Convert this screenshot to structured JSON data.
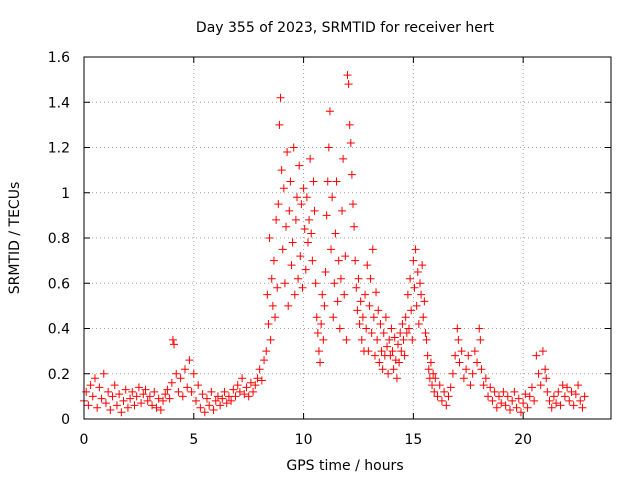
{
  "chart_data": {
    "type": "scatter",
    "title": "Day 355 of 2023, SRMTID for receiver hert",
    "xlabel": "GPS time / hours",
    "ylabel": "SRMTID / TECUs",
    "xlim": [
      0,
      24
    ],
    "ylim": [
      0,
      1.6
    ],
    "xticks": [
      0,
      5,
      10,
      15,
      20
    ],
    "xtick_labels": [
      "0",
      "5",
      "10",
      "15",
      "20"
    ],
    "yticks": [
      0,
      0.2,
      0.4,
      0.6,
      0.8,
      1,
      1.2,
      1.4,
      1.6
    ],
    "ytick_labels": [
      "0",
      "0.2",
      "0.4",
      "0.6",
      "0.8",
      "1",
      "1.2",
      "1.4",
      "1.6"
    ],
    "grid": true,
    "marker": "plus",
    "color": "#ff0000",
    "series": [
      {
        "name": "SRMTID",
        "points": [
          [
            0.0,
            0.08
          ],
          [
            0.1,
            0.12
          ],
          [
            0.2,
            0.06
          ],
          [
            0.3,
            0.15
          ],
          [
            0.4,
            0.1
          ],
          [
            0.5,
            0.18
          ],
          [
            0.6,
            0.05
          ],
          [
            0.7,
            0.14
          ],
          [
            0.8,
            0.09
          ],
          [
            0.9,
            0.2
          ],
          [
            1.0,
            0.07
          ],
          [
            1.1,
            0.12
          ],
          [
            1.2,
            0.04
          ],
          [
            1.3,
            0.1
          ],
          [
            1.4,
            0.15
          ],
          [
            1.5,
            0.06
          ],
          [
            1.6,
            0.11
          ],
          [
            1.7,
            0.03
          ],
          [
            1.8,
            0.08
          ],
          [
            1.9,
            0.13
          ],
          [
            2.0,
            0.05
          ],
          [
            2.1,
            0.09
          ],
          [
            2.2,
            0.12
          ],
          [
            2.3,
            0.06
          ],
          [
            2.4,
            0.1
          ],
          [
            2.5,
            0.14
          ],
          [
            2.6,
            0.07
          ],
          [
            2.7,
            0.11
          ],
          [
            2.8,
            0.13
          ],
          [
            2.9,
            0.08
          ],
          [
            3.0,
            0.1
          ],
          [
            3.1,
            0.06
          ],
          [
            3.2,
            0.12
          ],
          [
            3.3,
            0.05
          ],
          [
            3.4,
            0.09
          ],
          [
            3.5,
            0.04
          ],
          [
            3.6,
            0.08
          ],
          [
            3.7,
            0.11
          ],
          [
            3.8,
            0.13
          ],
          [
            3.9,
            0.09
          ],
          [
            4.0,
            0.16
          ],
          [
            4.05,
            0.35
          ],
          [
            4.1,
            0.33
          ],
          [
            4.2,
            0.2
          ],
          [
            4.3,
            0.12
          ],
          [
            4.4,
            0.18
          ],
          [
            4.5,
            0.1
          ],
          [
            4.6,
            0.22
          ],
          [
            4.7,
            0.14
          ],
          [
            4.8,
            0.26
          ],
          [
            4.9,
            0.12
          ],
          [
            5.0,
            0.2
          ],
          [
            5.1,
            0.08
          ],
          [
            5.2,
            0.15
          ],
          [
            5.3,
            0.05
          ],
          [
            5.4,
            0.11
          ],
          [
            5.5,
            0.03
          ],
          [
            5.6,
            0.09
          ],
          [
            5.7,
            0.06
          ],
          [
            5.8,
            0.12
          ],
          [
            5.9,
            0.04
          ],
          [
            6.0,
            0.08
          ],
          [
            6.1,
            0.1
          ],
          [
            6.2,
            0.06
          ],
          [
            6.3,
            0.09
          ],
          [
            6.4,
            0.12
          ],
          [
            6.5,
            0.07
          ],
          [
            6.6,
            0.1
          ],
          [
            6.7,
            0.08
          ],
          [
            6.8,
            0.13
          ],
          [
            6.9,
            0.1
          ],
          [
            7.0,
            0.15
          ],
          [
            7.1,
            0.12
          ],
          [
            7.2,
            0.18
          ],
          [
            7.3,
            0.11
          ],
          [
            7.4,
            0.14
          ],
          [
            7.5,
            0.1
          ],
          [
            7.6,
            0.16
          ],
          [
            7.7,
            0.12
          ],
          [
            7.8,
            0.15
          ],
          [
            7.9,
            0.18
          ],
          [
            8.0,
            0.22
          ],
          [
            8.1,
            0.17
          ],
          [
            8.2,
            0.26
          ],
          [
            8.3,
            0.3
          ],
          [
            8.35,
            0.55
          ],
          [
            8.4,
            0.42
          ],
          [
            8.45,
            0.8
          ],
          [
            8.5,
            0.35
          ],
          [
            8.55,
            0.62
          ],
          [
            8.6,
            0.5
          ],
          [
            8.65,
            0.7
          ],
          [
            8.7,
            0.45
          ],
          [
            8.75,
            0.88
          ],
          [
            8.8,
            0.58
          ],
          [
            8.85,
            0.95
          ],
          [
            8.9,
            1.3
          ],
          [
            8.95,
            1.42
          ],
          [
            9.0,
            1.1
          ],
          [
            9.05,
            0.75
          ],
          [
            9.1,
            1.02
          ],
          [
            9.15,
            0.6
          ],
          [
            9.2,
            0.85
          ],
          [
            9.25,
            1.18
          ],
          [
            9.3,
            0.5
          ],
          [
            9.35,
            0.92
          ],
          [
            9.4,
            1.05
          ],
          [
            9.45,
            0.68
          ],
          [
            9.5,
            0.78
          ],
          [
            9.55,
            1.2
          ],
          [
            9.6,
            0.55
          ],
          [
            9.65,
            0.88
          ],
          [
            9.7,
            0.98
          ],
          [
            9.75,
            0.62
          ],
          [
            9.8,
            1.12
          ],
          [
            9.85,
            0.72
          ],
          [
            9.9,
            0.95
          ],
          [
            9.95,
            0.58
          ],
          [
            10.0,
            1.02
          ],
          [
            10.05,
            0.84
          ],
          [
            10.1,
            0.66
          ],
          [
            10.15,
            0.98
          ],
          [
            10.2,
            0.78
          ],
          [
            10.25,
            0.88
          ],
          [
            10.3,
            1.15
          ],
          [
            10.35,
            0.82
          ],
          [
            10.4,
            0.7
          ],
          [
            10.45,
            1.05
          ],
          [
            10.5,
            0.92
          ],
          [
            10.55,
            0.6
          ],
          [
            10.6,
            0.45
          ],
          [
            10.65,
            0.38
          ],
          [
            10.7,
            0.3
          ],
          [
            10.75,
            0.25
          ],
          [
            10.8,
            0.42
          ],
          [
            10.85,
            0.55
          ],
          [
            10.9,
            0.35
          ],
          [
            10.95,
            0.5
          ],
          [
            11.0,
            0.65
          ],
          [
            11.05,
            0.9
          ],
          [
            11.1,
            1.05
          ],
          [
            11.15,
            1.2
          ],
          [
            11.2,
            1.36
          ],
          [
            11.25,
            0.75
          ],
          [
            11.3,
            0.98
          ],
          [
            11.35,
            0.45
          ],
          [
            11.4,
            0.6
          ],
          [
            11.45,
            0.82
          ],
          [
            11.5,
            1.05
          ],
          [
            11.55,
            0.52
          ],
          [
            11.6,
            0.7
          ],
          [
            11.65,
            0.4
          ],
          [
            11.7,
            0.62
          ],
          [
            11.75,
            0.92
          ],
          [
            11.8,
            1.15
          ],
          [
            11.85,
            0.55
          ],
          [
            11.9,
            0.72
          ],
          [
            11.95,
            0.35
          ],
          [
            12.0,
            1.52
          ],
          [
            12.05,
            1.48
          ],
          [
            12.1,
            1.3
          ],
          [
            12.15,
            1.22
          ],
          [
            12.2,
            1.08
          ],
          [
            12.25,
            0.95
          ],
          [
            12.3,
            0.85
          ],
          [
            12.35,
            0.7
          ],
          [
            12.4,
            0.58
          ],
          [
            12.45,
            0.48
          ],
          [
            12.5,
            0.62
          ],
          [
            12.55,
            0.42
          ],
          [
            12.6,
            0.52
          ],
          [
            12.65,
            0.35
          ],
          [
            12.7,
            0.45
          ],
          [
            12.75,
            0.3
          ],
          [
            12.8,
            0.55
          ],
          [
            12.85,
            0.4
          ],
          [
            12.9,
            0.68
          ],
          [
            12.95,
            0.3
          ],
          [
            13.0,
            0.5
          ],
          [
            13.05,
            0.62
          ],
          [
            13.1,
            0.38
          ],
          [
            13.15,
            0.75
          ],
          [
            13.2,
            0.45
          ],
          [
            13.25,
            0.28
          ],
          [
            13.3,
            0.56
          ],
          [
            13.35,
            0.35
          ],
          [
            13.4,
            0.48
          ],
          [
            13.45,
            0.25
          ],
          [
            13.5,
            0.42
          ],
          [
            13.55,
            0.3
          ],
          [
            13.6,
            0.22
          ],
          [
            13.65,
            0.38
          ],
          [
            13.7,
            0.28
          ],
          [
            13.75,
            0.45
          ],
          [
            13.8,
            0.32
          ],
          [
            13.85,
            0.2
          ],
          [
            13.9,
            0.35
          ],
          [
            13.95,
            0.28
          ],
          [
            14.0,
            0.4
          ],
          [
            14.05,
            0.3
          ],
          [
            14.1,
            0.22
          ],
          [
            14.15,
            0.36
          ],
          [
            14.2,
            0.26
          ],
          [
            14.25,
            0.18
          ],
          [
            14.3,
            0.33
          ],
          [
            14.35,
            0.25
          ],
          [
            14.4,
            0.38
          ],
          [
            14.45,
            0.3
          ],
          [
            14.5,
            0.42
          ],
          [
            14.55,
            0.35
          ],
          [
            14.6,
            0.28
          ],
          [
            14.65,
            0.45
          ],
          [
            14.7,
            0.38
          ],
          [
            14.75,
            0.55
          ],
          [
            14.8,
            0.4
          ],
          [
            14.85,
            0.62
          ],
          [
            14.9,
            0.48
          ],
          [
            14.95,
            0.35
          ],
          [
            15.0,
            0.7
          ],
          [
            15.05,
            0.58
          ],
          [
            15.1,
            0.75
          ],
          [
            15.15,
            0.5
          ],
          [
            15.2,
            0.65
          ],
          [
            15.25,
            0.42
          ],
          [
            15.3,
            0.6
          ],
          [
            15.35,
            0.55
          ],
          [
            15.4,
            0.68
          ],
          [
            15.45,
            0.45
          ],
          [
            15.5,
            0.52
          ],
          [
            15.55,
            0.38
          ],
          [
            15.6,
            0.35
          ],
          [
            15.65,
            0.28
          ],
          [
            15.7,
            0.22
          ],
          [
            15.75,
            0.18
          ],
          [
            15.8,
            0.25
          ],
          [
            15.85,
            0.15
          ],
          [
            15.9,
            0.2
          ],
          [
            15.95,
            0.12
          ],
          [
            16.0,
            0.18
          ],
          [
            16.1,
            0.1
          ],
          [
            16.2,
            0.15
          ],
          [
            16.3,
            0.08
          ],
          [
            16.4,
            0.12
          ],
          [
            16.5,
            0.06
          ],
          [
            16.6,
            0.1
          ],
          [
            16.7,
            0.14
          ],
          [
            16.8,
            0.2
          ],
          [
            16.9,
            0.28
          ],
          [
            17.0,
            0.4
          ],
          [
            17.05,
            0.35
          ],
          [
            17.1,
            0.25
          ],
          [
            17.2,
            0.3
          ],
          [
            17.3,
            0.18
          ],
          [
            17.4,
            0.22
          ],
          [
            17.5,
            0.28
          ],
          [
            17.6,
            0.15
          ],
          [
            17.7,
            0.2
          ],
          [
            17.8,
            0.3
          ],
          [
            17.9,
            0.25
          ],
          [
            18.0,
            0.4
          ],
          [
            18.05,
            0.35
          ],
          [
            18.1,
            0.22
          ],
          [
            18.2,
            0.15
          ],
          [
            18.3,
            0.18
          ],
          [
            18.4,
            0.1
          ],
          [
            18.5,
            0.14
          ],
          [
            18.6,
            0.08
          ],
          [
            18.7,
            0.12
          ],
          [
            18.8,
            0.05
          ],
          [
            18.9,
            0.1
          ],
          [
            19.0,
            0.07
          ],
          [
            19.1,
            0.12
          ],
          [
            19.2,
            0.06
          ],
          [
            19.3,
            0.1
          ],
          [
            19.4,
            0.04
          ],
          [
            19.5,
            0.08
          ],
          [
            19.6,
            0.12
          ],
          [
            19.7,
            0.05
          ],
          [
            19.8,
            0.09
          ],
          [
            19.9,
            0.03
          ],
          [
            20.0,
            0.07
          ],
          [
            20.1,
            0.11
          ],
          [
            20.2,
            0.05
          ],
          [
            20.3,
            0.1
          ],
          [
            20.4,
            0.14
          ],
          [
            20.5,
            0.08
          ],
          [
            20.6,
            0.28
          ],
          [
            20.7,
            0.2
          ],
          [
            20.8,
            0.15
          ],
          [
            20.9,
            0.3
          ],
          [
            21.0,
            0.22
          ],
          [
            21.05,
            0.18
          ],
          [
            21.1,
            0.12
          ],
          [
            21.2,
            0.08
          ],
          [
            21.3,
            0.05
          ],
          [
            21.4,
            0.1
          ],
          [
            21.5,
            0.07
          ],
          [
            21.6,
            0.12
          ],
          [
            21.7,
            0.06
          ],
          [
            21.8,
            0.15
          ],
          [
            21.9,
            0.1
          ],
          [
            22.0,
            0.14
          ],
          [
            22.1,
            0.08
          ],
          [
            22.2,
            0.12
          ],
          [
            22.3,
            0.06
          ],
          [
            22.4,
            0.11
          ],
          [
            22.5,
            0.15
          ],
          [
            22.6,
            0.08
          ],
          [
            22.7,
            0.05
          ],
          [
            22.8,
            0.1
          ]
        ]
      }
    ]
  }
}
